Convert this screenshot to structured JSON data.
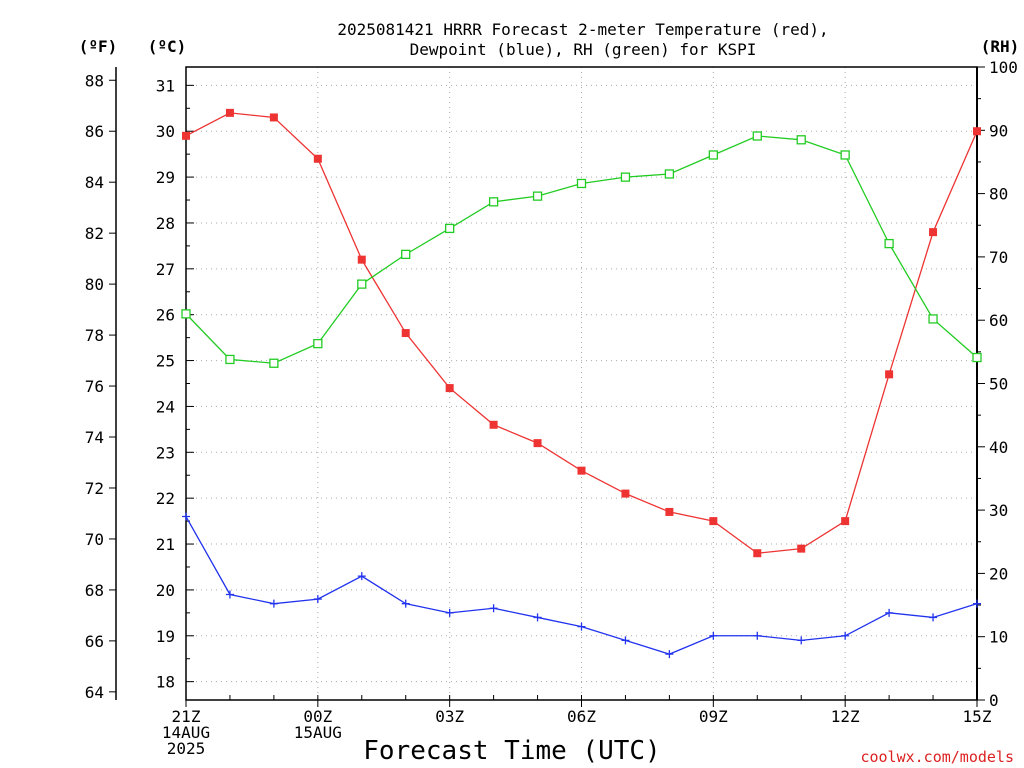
{
  "chart_data": {
    "type": "line",
    "title_lines": [
      "2025081421 HRRR Forecast 2-meter Temperature (red),",
      "Dewpoint (blue), RH (green) for KSPI"
    ],
    "xlabel": "Forecast Time (UTC)",
    "watermark": "coolwx.com/models",
    "axes_labels": {
      "fahrenheit": "(ºF)",
      "celsius": "(ºC)",
      "rh": "(RH)"
    },
    "x": [
      0,
      1,
      2,
      3,
      4,
      5,
      6,
      7,
      8,
      9,
      10,
      11,
      12,
      13,
      14,
      15,
      16,
      17,
      18
    ],
    "xticks": [
      {
        "x": 0,
        "lines": [
          "21Z",
          "14AUG",
          "2025"
        ]
      },
      {
        "x": 3,
        "lines": [
          "00Z",
          "15AUG"
        ]
      },
      {
        "x": 6,
        "lines": [
          "03Z"
        ]
      },
      {
        "x": 9,
        "lines": [
          "06Z"
        ]
      },
      {
        "x": 12,
        "lines": [
          "09Z"
        ]
      },
      {
        "x": 15,
        "lines": [
          "12Z"
        ]
      },
      {
        "x": 18,
        "lines": [
          "15Z"
        ]
      }
    ],
    "celsius_axis": {
      "min": 17.6,
      "max": 31.4,
      "ticks": [
        18,
        19,
        20,
        21,
        22,
        23,
        24,
        25,
        26,
        27,
        28,
        29,
        30,
        31
      ]
    },
    "fahrenheit_ticks": [
      64,
      66,
      68,
      70,
      72,
      74,
      76,
      78,
      80,
      82,
      84,
      86,
      88
    ],
    "rh_axis": {
      "min": 0,
      "max": 100,
      "ticks": [
        0,
        10,
        20,
        30,
        40,
        50,
        60,
        70,
        80,
        90,
        100
      ]
    },
    "grid": true,
    "series": [
      {
        "name": "Temperature (red)",
        "axis": "celsius",
        "color": "#ee3333",
        "marker": "filled-square",
        "values": [
          29.9,
          30.4,
          30.3,
          29.4,
          27.2,
          25.6,
          24.4,
          23.6,
          23.2,
          22.6,
          22.1,
          21.7,
          21.5,
          20.8,
          20.9,
          21.5,
          24.7,
          27.8,
          30.0
        ]
      },
      {
        "name": "Dewpoint (blue)",
        "axis": "celsius",
        "color": "#2233ee",
        "marker": "plus",
        "values": [
          21.6,
          19.9,
          19.7,
          19.8,
          20.3,
          19.7,
          19.5,
          19.6,
          19.4,
          19.2,
          18.9,
          18.6,
          19.0,
          19.0,
          18.9,
          19.0,
          19.5,
          19.4,
          19.7
        ]
      },
      {
        "name": "RH (green)",
        "axis": "rh",
        "color": "#22cc22",
        "marker": "open-square",
        "values": [
          61,
          53.8,
          53.2,
          56.3,
          65.7,
          70.4,
          74.5,
          78.7,
          79.6,
          81.6,
          82.6,
          83.1,
          86.1,
          89.1,
          88.5,
          86.1,
          72.1,
          60.2,
          54.1
        ]
      }
    ]
  }
}
